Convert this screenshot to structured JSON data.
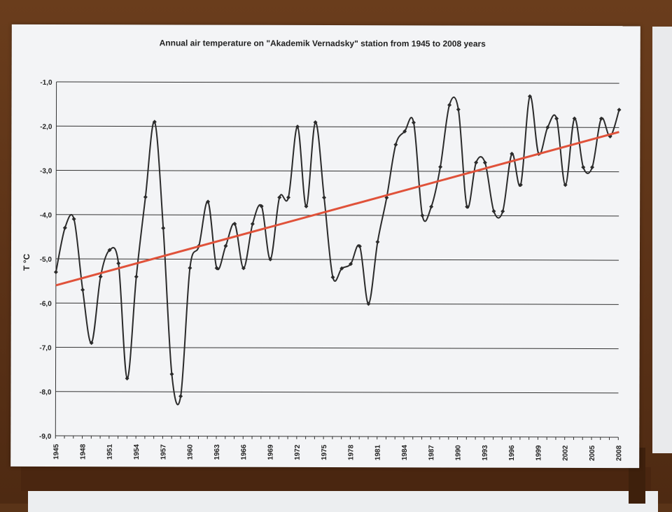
{
  "chart_data": {
    "type": "line",
    "title": "Annual air temperature on \"Akademik Vernadsky\" station from 1945 to 2008 years",
    "ylabel": "T °C",
    "xlabel": "",
    "ylim": [
      -9.0,
      -1.0
    ],
    "xlim": [
      1945,
      2008
    ],
    "grid": "horizontal",
    "y_ticks": [
      "-1,0",
      "-2,0",
      "-3,0",
      "-4,0",
      "-5,0",
      "-6,0",
      "-7,0",
      "-8,0",
      "-9,0"
    ],
    "x_ticks": [
      "1945",
      "1948",
      "1951",
      "1954",
      "1957",
      "1960",
      "1963",
      "1966",
      "1969",
      "1972",
      "1975",
      "1978",
      "1981",
      "1984",
      "1987",
      "1990",
      "1993",
      "1996",
      "1999",
      "2002",
      "2005",
      "2008"
    ],
    "series": [
      {
        "color": "#2b2b2b",
        "style": "smooth-line-with-markers",
        "x": [
          1945,
          1946,
          1947,
          1948,
          1949,
          1950,
          1951,
          1952,
          1953,
          1954,
          1955,
          1956,
          1957,
          1958,
          1959,
          1960,
          1961,
          1962,
          1963,
          1964,
          1965,
          1966,
          1967,
          1968,
          1969,
          1970,
          1971,
          1972,
          1973,
          1974,
          1975,
          1976,
          1977,
          1978,
          1979,
          1980,
          1981,
          1982,
          1983,
          1984,
          1985,
          1986,
          1987,
          1988,
          1989,
          1990,
          1991,
          1992,
          1993,
          1994,
          1995,
          1996,
          1997,
          1998,
          1999,
          2000,
          2001,
          2002,
          2003,
          2004,
          2005,
          2006,
          2007,
          2008
        ],
        "y": [
          -5.3,
          -4.3,
          -4.1,
          -5.7,
          -6.9,
          -5.4,
          -4.8,
          -5.1,
          -7.7,
          -5.4,
          -3.6,
          -1.9,
          -4.3,
          -7.6,
          -8.1,
          -5.2,
          -4.7,
          -3.7,
          -5.2,
          -4.7,
          -4.2,
          -5.2,
          -4.2,
          -3.8,
          -5.0,
          -3.6,
          -3.6,
          -2.0,
          -3.8,
          -1.9,
          -3.6,
          -5.4,
          -5.2,
          -5.1,
          -4.7,
          -6.0,
          -4.6,
          -3.6,
          -2.4,
          -2.1,
          -1.9,
          -4.0,
          -3.8,
          -2.9,
          -1.5,
          -1.6,
          -3.8,
          -2.8,
          -2.8,
          -3.9,
          -3.9,
          -2.6,
          -3.3,
          -1.3,
          -2.6,
          -2.0,
          -1.8,
          -3.3,
          -1.8,
          -2.9,
          -2.9,
          -1.8,
          -2.2,
          -1.6
        ]
      },
      {
        "color": "#e0523a",
        "style": "trend-line",
        "x": [
          1945,
          2008
        ],
        "y": [
          -5.6,
          -2.1
        ]
      }
    ]
  }
}
